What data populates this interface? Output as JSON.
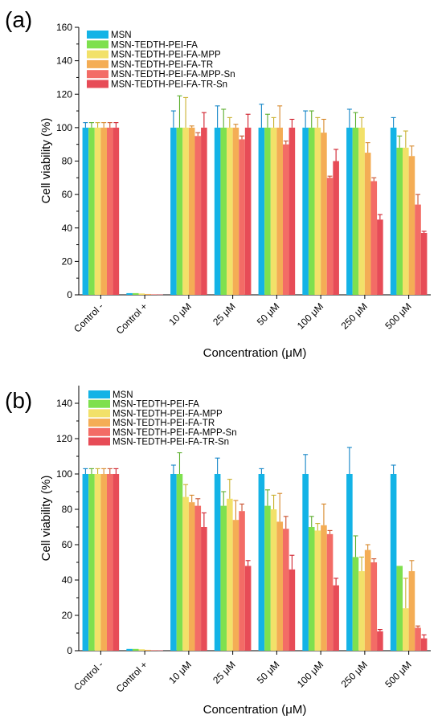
{
  "colors": {
    "series": [
      "#13b3e6",
      "#7ee04e",
      "#f2e169",
      "#f4ad55",
      "#f36c66",
      "#e74c57"
    ],
    "errors": [
      "#1285c7",
      "#5cae2e",
      "#c9b02d",
      "#d7882b",
      "#c9512e",
      "#d0202c"
    ]
  },
  "chart_data": [
    {
      "type": "bar",
      "panel_label": "(a)",
      "title": "",
      "xlabel": "Concentration (μM)",
      "ylabel": "Cell viability (%)",
      "ylim": [
        0,
        160
      ],
      "yticks": [
        0,
        20,
        40,
        60,
        80,
        100,
        120,
        140,
        160
      ],
      "grid": false,
      "legend_position": "top-left",
      "categories": [
        "Control -",
        "Control +",
        "10 μM",
        "25 μM",
        "50 μM",
        "100 μM",
        "250 μM",
        "500 μM"
      ],
      "series": [
        {
          "name": "MSN",
          "values": [
            100,
            1,
            100,
            100,
            100,
            100,
            100,
            100
          ],
          "errors": [
            3,
            0.5,
            10,
            13,
            14,
            10,
            11,
            6
          ]
        },
        {
          "name": "MSN-TEDTH-PEI-FA",
          "values": [
            100,
            1,
            100,
            100,
            100,
            100,
            100,
            88
          ],
          "errors": [
            3,
            0.5,
            19,
            11,
            8,
            10,
            9,
            7
          ]
        },
        {
          "name": "MSN-TEDTH-PEI-FA-MPP",
          "values": [
            100,
            0.8,
            100,
            100,
            100,
            100,
            100,
            88
          ],
          "errors": [
            3,
            0.3,
            18,
            6,
            6,
            6,
            6,
            10
          ]
        },
        {
          "name": "MSN-TEDTH-PEI-FA-TR",
          "values": [
            100,
            0.5,
            100,
            100,
            100,
            97,
            85,
            83
          ],
          "errors": [
            3,
            0.3,
            1,
            2,
            13,
            8,
            6,
            6
          ]
        },
        {
          "name": "MSN-TEDTH-PEI-FA-MPP-Sn",
          "values": [
            100,
            0.3,
            95,
            93,
            90,
            70,
            68,
            54
          ],
          "errors": [
            3,
            0.2,
            2,
            2,
            2,
            1,
            2,
            6
          ]
        },
        {
          "name": "MSN-TEDTH-PEI-FA-TR-Sn",
          "values": [
            100,
            0.2,
            100,
            100,
            100,
            80,
            45,
            37
          ],
          "errors": [
            3,
            0.2,
            9,
            8,
            5,
            7,
            3,
            1
          ]
        }
      ]
    },
    {
      "type": "bar",
      "panel_label": "(b)",
      "title": "",
      "xlabel": "Concentration (μM)",
      "ylabel": "Cell viability (%)",
      "ylim": [
        0,
        150
      ],
      "yticks": [
        0,
        20,
        40,
        60,
        80,
        100,
        120,
        140
      ],
      "grid": false,
      "legend_position": "top-left",
      "categories": [
        "Control -",
        "Control +",
        "10 μM",
        "25 μM",
        "50 μM",
        "100 μM",
        "250 μM",
        "500 μM"
      ],
      "series": [
        {
          "name": "MSN",
          "values": [
            100,
            1,
            100,
            100,
            100,
            100,
            100,
            100
          ],
          "errors": [
            3,
            0.5,
            5,
            9,
            3,
            11,
            15,
            5
          ]
        },
        {
          "name": "MSN-TEDTH-PEI-FA",
          "values": [
            100,
            1,
            100,
            82,
            82,
            70,
            53,
            48
          ],
          "errors": [
            3,
            0.5,
            12,
            8,
            9,
            6,
            12,
            0.5
          ]
        },
        {
          "name": "MSN-TEDTH-PEI-FA-MPP",
          "values": [
            100,
            0.8,
            87,
            86,
            80,
            68,
            45,
            24
          ],
          "errors": [
            3,
            0.3,
            7,
            11,
            8,
            4,
            8,
            17
          ]
        },
        {
          "name": "MSN-TEDTH-PEI-FA-TR",
          "values": [
            100,
            0.5,
            84,
            74,
            73,
            71,
            57,
            45
          ],
          "errors": [
            3,
            0.3,
            4,
            11,
            16,
            12,
            3,
            6
          ]
        },
        {
          "name": "MSN-TEDTH-PEI-FA-MPP-Sn",
          "values": [
            100,
            0.3,
            82,
            79,
            69,
            66,
            50,
            13
          ],
          "errors": [
            3,
            0.2,
            4,
            4,
            7,
            2,
            2,
            1
          ]
        },
        {
          "name": "MSN-TEDTH-PEI-FA-TR-Sn",
          "values": [
            100,
            0.2,
            70,
            48,
            46,
            37,
            11,
            7
          ],
          "errors": [
            3,
            0.2,
            8,
            3,
            8,
            4,
            1,
            2
          ]
        }
      ]
    }
  ]
}
